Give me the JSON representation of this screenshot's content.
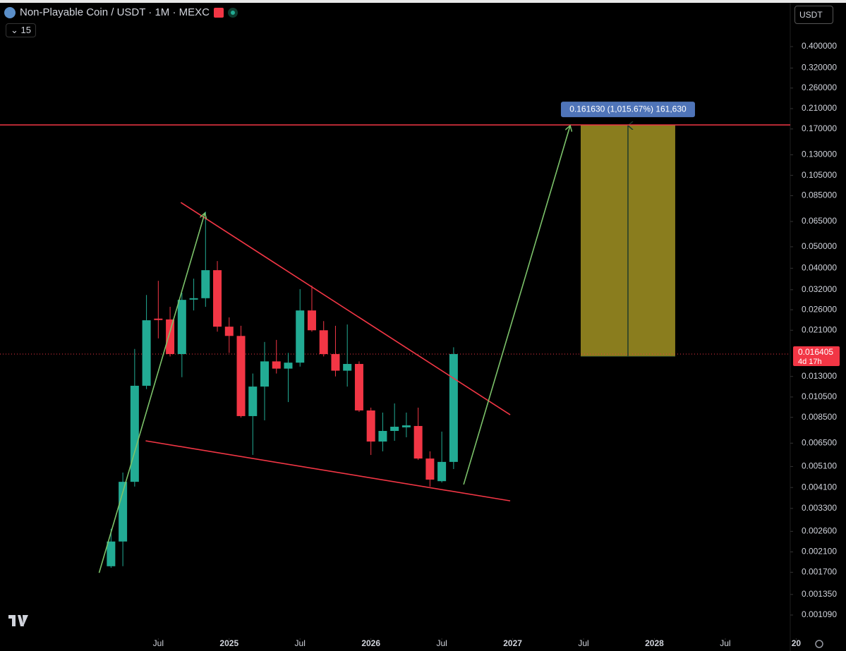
{
  "header": {
    "symbol": "Non-Playable Coin / USDT · 1M · MEXC",
    "interval_count": "15",
    "currency": "USDT"
  },
  "chart_data": {
    "type": "candlestick",
    "log_scale": true,
    "up_color": "#22ab94",
    "down_color": "#f23645",
    "open": [
      0.00181,
      0.00234,
      0.00435,
      0.0118,
      0.0237,
      0.0235,
      0.0164,
      0.0293,
      0.0293,
      0.0392,
      0.0218,
      0.0198,
      0.00861,
      0.0117,
      0.0152,
      0.0141,
      0.015,
      0.0258,
      0.021,
      0.0164,
      0.0138,
      0.0148,
      0.00913,
      0.00661,
      0.00738,
      0.00766,
      0.00777,
      0.00554,
      0.00438,
      0.00535
    ],
    "high": [
      0.00267,
      0.00479,
      0.0173,
      0.0303,
      0.0351,
      0.0268,
      0.031,
      0.0359,
      0.072,
      0.0431,
      0.024,
      0.022,
      0.0134,
      0.0186,
      0.019,
      0.0166,
      0.0322,
      0.0334,
      0.0231,
      0.022,
      0.0223,
      0.0152,
      0.0094,
      0.00893,
      0.00982,
      0.00893,
      0.0094,
      0.00597,
      0.00733,
      0.0176
    ],
    "low": [
      0.00178,
      0.00181,
      0.00414,
      0.0114,
      0.0193,
      0.016,
      0.0129,
      0.0258,
      0.0268,
      0.0207,
      0.0166,
      0.00848,
      0.00575,
      0.00824,
      0.0134,
      0.00996,
      0.0144,
      0.0207,
      0.016,
      0.013,
      0.0117,
      0.00899,
      0.00575,
      0.00597,
      0.00666,
      0.00691,
      0.00546,
      0.00414,
      0.00432,
      0.00497
    ],
    "close": [
      0.00234,
      0.00435,
      0.0118,
      0.0233,
      0.0235,
      0.0164,
      0.0288,
      0.0293,
      0.0392,
      0.0218,
      0.0198,
      0.00861,
      0.0117,
      0.0152,
      0.0141,
      0.015,
      0.0258,
      0.021,
      0.0164,
      0.0138,
      0.0148,
      0.00913,
      0.00661,
      0.00738,
      0.00771,
      0.00782,
      0.00554,
      0.00445,
      0.00535,
      0.0164
    ],
    "xlim": [
      -9.4,
      57.5
    ],
    "xticks": [
      {
        "value": 4,
        "label": "Jul"
      },
      {
        "value": 10,
        "label": "2025"
      },
      {
        "value": 16,
        "label": "Jul"
      },
      {
        "value": 22,
        "label": "2026"
      },
      {
        "value": 28,
        "label": "Jul"
      },
      {
        "value": 34,
        "label": "2027"
      },
      {
        "value": 40,
        "label": "Jul"
      },
      {
        "value": 46,
        "label": "2028"
      },
      {
        "value": 52,
        "label": "Jul"
      },
      {
        "value": 58,
        "label": "20"
      }
    ],
    "ylim": [
      0.000888,
      0.649
    ],
    "yticks": [
      {
        "value": 0.4,
        "label": "0.400000"
      },
      {
        "value": 0.32,
        "label": "0.320000"
      },
      {
        "value": 0.26,
        "label": "0.260000"
      },
      {
        "value": 0.21,
        "label": "0.210000"
      },
      {
        "value": 0.17,
        "label": "0.170000"
      },
      {
        "value": 0.13,
        "label": "0.130000"
      },
      {
        "value": 0.105,
        "label": "0.105000"
      },
      {
        "value": 0.085,
        "label": "0.085000"
      },
      {
        "value": 0.065,
        "label": "0.065000"
      },
      {
        "value": 0.05,
        "label": "0.050000"
      },
      {
        "value": 0.04,
        "label": "0.040000"
      },
      {
        "value": 0.032,
        "label": "0.032000"
      },
      {
        "value": 0.026,
        "label": "0.026000"
      },
      {
        "value": 0.021,
        "label": "0.021000"
      },
      {
        "value": 0.013,
        "label": "0.013000"
      },
      {
        "value": 0.0105,
        "label": "0.010500"
      },
      {
        "value": 0.0085,
        "label": "0.008500"
      },
      {
        "value": 0.0065,
        "label": "0.006500"
      },
      {
        "value": 0.0051,
        "label": "0.005100"
      },
      {
        "value": 0.0041,
        "label": "0.004100"
      },
      {
        "value": 0.0033,
        "label": "0.003300"
      },
      {
        "value": 0.0026,
        "label": "0.002600"
      },
      {
        "value": 0.0021,
        "label": "0.002100"
      },
      {
        "value": 0.0017,
        "label": "0.001700"
      },
      {
        "value": 0.00135,
        "label": "0.001350"
      },
      {
        "value": 0.00109,
        "label": "0.001090"
      }
    ],
    "last_price": {
      "value": 0.016405,
      "label": "0.016405",
      "countdown": "4d 17h"
    },
    "lines": [
      {
        "color": "#f23645",
        "x": [
          5.91,
          33.79
        ],
        "y": [
          0.0792,
          0.00873
        ]
      },
      {
        "color": "#f23645",
        "x": [
          2.93,
          33.79
        ],
        "y": [
          0.00666,
          0.00357
        ]
      },
      {
        "color": "#7cc26a",
        "arrow": true,
        "x": [
          -1.01,
          7.94
        ],
        "y": [
          0.00169,
          0.071
        ]
      },
      {
        "color": "#7cc26a",
        "arrow": true,
        "x": [
          29.85,
          38.87
        ],
        "y": [
          0.00423,
          0.1761
        ]
      }
    ],
    "resistance": {
      "value": 0.1773,
      "color": "#f23645"
    },
    "measure": {
      "x": [
        39.76,
        47.76
      ],
      "y": [
        0.016,
        0.1773
      ],
      "color": "#8a7d1e",
      "label": "0.161630 (1,015.67%) 161,630"
    }
  }
}
